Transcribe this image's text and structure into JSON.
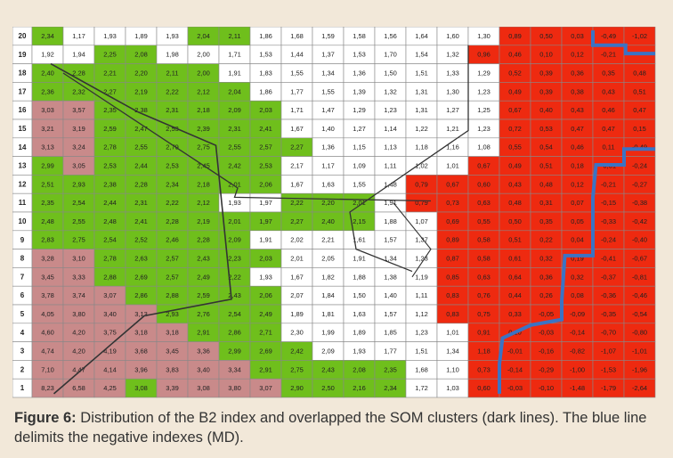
{
  "caption": {
    "label": "Figure 6:",
    "text": " Distribution of the B2 index and overlapped the SOM clusters (dark lines). The blue line delimits the negative indexes (MD)."
  },
  "colors": {
    "green": "#6fbf1c",
    "white": "#ffffff",
    "pink": "#c98a8a",
    "red": "#ee2a10",
    "grid": "#888888",
    "cluster_line": "#333333",
    "blue_line": "#3b73c4"
  },
  "chart_data": {
    "type": "heatmap",
    "title": "",
    "row_labels": [
      "20",
      "19",
      "18",
      "17",
      "16",
      "15",
      "14",
      "13",
      "12",
      "11",
      "10",
      "9",
      "8",
      "7",
      "6",
      "5",
      "4",
      "3",
      "2",
      "1"
    ],
    "color_key": {
      "g": "green",
      "w": "white",
      "p": "pink",
      "r": "red"
    },
    "rows": [
      {
        "values": [
          "2,34",
          "1,17",
          "1,93",
          "1,89",
          "1,93",
          "2,04",
          "2,11",
          "1,86",
          "1,68",
          "1,59",
          "1,58",
          "1,56",
          "1,64",
          "1,60",
          "1,30",
          "0,89",
          "0,50",
          "0,03",
          "-0,49",
          "-1,02"
        ],
        "colors": [
          "g",
          "w",
          "w",
          "w",
          "w",
          "g",
          "g",
          "w",
          "w",
          "w",
          "w",
          "w",
          "w",
          "w",
          "w",
          "r",
          "r",
          "r",
          "r",
          "r"
        ]
      },
      {
        "values": [
          "1,92",
          "1,94",
          "2,25",
          "2,08",
          "1,98",
          "2,00",
          "1,71",
          "1,53",
          "1,44",
          "1,37",
          "1,53",
          "1,70",
          "1,54",
          "1,32",
          "0,96",
          "0,46",
          "0,10",
          "0,12",
          "-0,21",
          ""
        ],
        "colors": [
          "w",
          "w",
          "g",
          "g",
          "w",
          "w",
          "w",
          "w",
          "w",
          "w",
          "w",
          "w",
          "w",
          "w",
          "r",
          "r",
          "r",
          "r",
          "r",
          "r"
        ]
      },
      {
        "values": [
          "2,40",
          "2,28",
          "2,21",
          "2,20",
          "2,11",
          "2,00",
          "1,91",
          "1,83",
          "1,55",
          "1,34",
          "1,36",
          "1,50",
          "1,51",
          "1,33",
          "1,29",
          "0,52",
          "0,39",
          "0,36",
          "0,35",
          "0,48"
        ],
        "colors": [
          "g",
          "g",
          "g",
          "g",
          "g",
          "g",
          "w",
          "w",
          "w",
          "w",
          "w",
          "w",
          "w",
          "w",
          "w",
          "r",
          "r",
          "r",
          "r",
          "r"
        ]
      },
      {
        "values": [
          "2,36",
          "2,32",
          "2,27",
          "2,19",
          "2,22",
          "2,12",
          "2,04",
          "1,86",
          "1,77",
          "1,55",
          "1,39",
          "1,32",
          "1,31",
          "1,30",
          "1,23",
          "0,49",
          "0,39",
          "0,38",
          "0,43",
          "0,51"
        ],
        "colors": [
          "g",
          "g",
          "g",
          "g",
          "g",
          "g",
          "g",
          "w",
          "w",
          "w",
          "w",
          "w",
          "w",
          "w",
          "w",
          "r",
          "r",
          "r",
          "r",
          "r"
        ]
      },
      {
        "values": [
          "3,03",
          "3,57",
          "2,35",
          "2,38",
          "2,31",
          "2,18",
          "2,09",
          "2,03",
          "1,71",
          "1,47",
          "1,29",
          "1,23",
          "1,31",
          "1,27",
          "1,25",
          "0,67",
          "0,40",
          "0,43",
          "0,46",
          "0,47"
        ],
        "colors": [
          "p",
          "p",
          "g",
          "g",
          "g",
          "g",
          "g",
          "g",
          "w",
          "w",
          "w",
          "w",
          "w",
          "w",
          "w",
          "r",
          "r",
          "r",
          "r",
          "r"
        ]
      },
      {
        "values": [
          "3,21",
          "3,19",
          "2,59",
          "2,47",
          "2,53",
          "2,39",
          "2,31",
          "2,41",
          "1,67",
          "1,40",
          "1,27",
          "1,14",
          "1,22",
          "1,21",
          "1,23",
          "0,72",
          "0,53",
          "0,47",
          "0,47",
          "0,15"
        ],
        "colors": [
          "p",
          "p",
          "g",
          "g",
          "g",
          "g",
          "g",
          "g",
          "w",
          "w",
          "w",
          "w",
          "w",
          "w",
          "w",
          "r",
          "r",
          "r",
          "r",
          "r"
        ]
      },
      {
        "values": [
          "3,13",
          "3,24",
          "2,78",
          "2,55",
          "2,79",
          "2,75",
          "2,55",
          "2,57",
          "2,27",
          "1,36",
          "1,15",
          "1,13",
          "1,18",
          "1,16",
          "1,08",
          "0,55",
          "0,54",
          "0,46",
          "0,11",
          "-0,49"
        ],
        "colors": [
          "p",
          "p",
          "g",
          "g",
          "g",
          "g",
          "g",
          "g",
          "g",
          "w",
          "w",
          "w",
          "w",
          "w",
          "w",
          "r",
          "r",
          "r",
          "r",
          "r"
        ]
      },
      {
        "values": [
          "2,99",
          "3,05",
          "2,53",
          "2,44",
          "2,53",
          "2,45",
          "2,42",
          "2,53",
          "2,17",
          "1,17",
          "1,09",
          "1,11",
          "1,02",
          "1,01",
          "0,67",
          "0,49",
          "0,51",
          "0,18",
          "-0,01",
          "-0,24"
        ],
        "colors": [
          "g",
          "p",
          "g",
          "g",
          "g",
          "g",
          "g",
          "g",
          "w",
          "w",
          "w",
          "w",
          "w",
          "w",
          "r",
          "r",
          "r",
          "r",
          "r",
          "r"
        ]
      },
      {
        "values": [
          "2,51",
          "2,93",
          "2,38",
          "2,28",
          "2,34",
          "2,18",
          "2,01",
          "2,06",
          "1,67",
          "1,63",
          "1,55",
          "1,48",
          "0,79",
          "0,67",
          "0,60",
          "0,43",
          "0,48",
          "0,12",
          "-0,21",
          "-0,27"
        ],
        "colors": [
          "g",
          "g",
          "g",
          "g",
          "g",
          "g",
          "g",
          "g",
          "w",
          "w",
          "w",
          "w",
          "r",
          "r",
          "r",
          "r",
          "r",
          "r",
          "r",
          "r"
        ]
      },
      {
        "values": [
          "2,35",
          "2,54",
          "2,44",
          "2,31",
          "2,22",
          "2,12",
          "1,93",
          "1,97",
          "2,22",
          "2,20",
          "2,01",
          "1,91",
          "0,79",
          "0,73",
          "0,63",
          "0,48",
          "0,31",
          "0,07",
          "-0,15",
          "-0,38"
        ],
        "colors": [
          "g",
          "g",
          "g",
          "g",
          "g",
          "g",
          "w",
          "w",
          "g",
          "g",
          "g",
          "w",
          "r",
          "r",
          "r",
          "r",
          "r",
          "r",
          "r",
          "r"
        ]
      },
      {
        "values": [
          "2,48",
          "2,55",
          "2,48",
          "2,41",
          "2,28",
          "2,19",
          "2,01",
          "1,97",
          "2,27",
          "2,40",
          "2,15",
          "1,88",
          "1,07",
          "0,69",
          "0,55",
          "0,50",
          "0,35",
          "0,05",
          "-0,33",
          "-0,42"
        ],
        "colors": [
          "g",
          "g",
          "g",
          "g",
          "g",
          "g",
          "g",
          "g",
          "g",
          "g",
          "g",
          "w",
          "w",
          "r",
          "r",
          "r",
          "r",
          "r",
          "r",
          "r"
        ]
      },
      {
        "values": [
          "2,83",
          "2,75",
          "2,54",
          "2,52",
          "2,46",
          "2,28",
          "2,09",
          "1,91",
          "2,02",
          "2,21",
          "1,61",
          "1,57",
          "1,37",
          "0,89",
          "0,58",
          "0,51",
          "0,22",
          "0,04",
          "-0,24",
          "-0,40"
        ],
        "colors": [
          "g",
          "g",
          "g",
          "g",
          "g",
          "g",
          "g",
          "w",
          "w",
          "w",
          "w",
          "w",
          "w",
          "r",
          "r",
          "r",
          "r",
          "r",
          "r",
          "r"
        ]
      },
      {
        "values": [
          "3,28",
          "3,10",
          "2,78",
          "2,63",
          "2,57",
          "2,43",
          "2,23",
          "2,03",
          "2,01",
          "2,05",
          "1,91",
          "1,34",
          "1,23",
          "0,87",
          "0,58",
          "0,61",
          "0,32",
          "0,19",
          "-0,41",
          "-0,67"
        ],
        "colors": [
          "p",
          "p",
          "g",
          "g",
          "g",
          "g",
          "g",
          "g",
          "w",
          "w",
          "w",
          "w",
          "w",
          "r",
          "r",
          "r",
          "r",
          "r",
          "r",
          "r"
        ]
      },
      {
        "values": [
          "3,45",
          "3,33",
          "2,88",
          "2,69",
          "2,57",
          "2,49",
          "2,22",
          "1,93",
          "1,67",
          "1,82",
          "1,88",
          "1,38",
          "1,19",
          "0,85",
          "0,63",
          "0,64",
          "0,36",
          "0,32",
          "-0,37",
          "-0,81"
        ],
        "colors": [
          "p",
          "p",
          "g",
          "g",
          "g",
          "g",
          "g",
          "w",
          "w",
          "w",
          "w",
          "w",
          "w",
          "r",
          "r",
          "r",
          "r",
          "r",
          "r",
          "r"
        ]
      },
      {
        "values": [
          "3,78",
          "3,74",
          "3,07",
          "2,86",
          "2,88",
          "2,59",
          "2,43",
          "2,06",
          "2,07",
          "1,84",
          "1,50",
          "1,40",
          "1,11",
          "0,83",
          "0,76",
          "0,44",
          "0,26",
          "0,08",
          "-0,36",
          "-0,46"
        ],
        "colors": [
          "p",
          "p",
          "p",
          "g",
          "g",
          "g",
          "g",
          "g",
          "w",
          "w",
          "w",
          "w",
          "w",
          "r",
          "r",
          "r",
          "r",
          "r",
          "r",
          "r"
        ]
      },
      {
        "values": [
          "4,05",
          "3,80",
          "3,40",
          "3,13",
          "2,93",
          "2,76",
          "2,54",
          "2,49",
          "1,89",
          "1,81",
          "1,63",
          "1,57",
          "1,12",
          "0,83",
          "0,75",
          "0,33",
          "-0,05",
          "-0,09",
          "-0,35",
          "-0,54"
        ],
        "colors": [
          "p",
          "p",
          "p",
          "p",
          "g",
          "g",
          "g",
          "g",
          "w",
          "w",
          "w",
          "w",
          "w",
          "r",
          "r",
          "r",
          "r",
          "r",
          "r",
          "r"
        ]
      },
      {
        "values": [
          "4,60",
          "4,20",
          "3,75",
          "3,18",
          "3,18",
          "2,91",
          "2,86",
          "2,71",
          "2,30",
          "1,99",
          "1,89",
          "1,85",
          "1,23",
          "1,01",
          "0,91",
          "0,10",
          "-0,03",
          "-0,14",
          "-0,70",
          "-0,80"
        ],
        "colors": [
          "p",
          "p",
          "p",
          "p",
          "p",
          "g",
          "g",
          "g",
          "w",
          "w",
          "w",
          "w",
          "w",
          "w",
          "r",
          "r",
          "r",
          "r",
          "r",
          "r"
        ]
      },
      {
        "values": [
          "4,74",
          "4,20",
          "4,19",
          "3,68",
          "3,45",
          "3,36",
          "2,99",
          "2,69",
          "2,42",
          "2,09",
          "1,93",
          "1,77",
          "1,51",
          "1,34",
          "1,18",
          "-0,01",
          "-0,16",
          "-0,82",
          "-1,07",
          "-1,01"
        ],
        "colors": [
          "p",
          "p",
          "p",
          "p",
          "p",
          "p",
          "g",
          "g",
          "g",
          "w",
          "w",
          "w",
          "w",
          "w",
          "r",
          "r",
          "r",
          "r",
          "r",
          "r"
        ]
      },
      {
        "values": [
          "7,10",
          "4,47",
          "4,14",
          "3,96",
          "3,83",
          "3,40",
          "3,34",
          "2,91",
          "2,75",
          "2,43",
          "2,08",
          "2,35",
          "1,68",
          "1,10",
          "0,73",
          "-0,14",
          "-0,29",
          "-1,00",
          "-1,53",
          "-1,96"
        ],
        "colors": [
          "p",
          "p",
          "p",
          "p",
          "p",
          "p",
          "p",
          "g",
          "g",
          "g",
          "g",
          "g",
          "w",
          "w",
          "r",
          "r",
          "r",
          "r",
          "r",
          "r"
        ]
      },
      {
        "values": [
          "8,23",
          "6,58",
          "4,25",
          "3,08",
          "3,39",
          "3,08",
          "3,80",
          "3,07",
          "2,90",
          "2,50",
          "2,16",
          "2,34",
          "1,72",
          "1,03",
          "0,60",
          "-0,03",
          "-0,10",
          "-1,48",
          "-1,79",
          "-2,64"
        ],
        "colors": [
          "p",
          "p",
          "p",
          "g",
          "p",
          "p",
          "p",
          "p",
          "g",
          "g",
          "g",
          "g",
          "w",
          "w",
          "r",
          "r",
          "r",
          "r",
          "r",
          "r"
        ]
      }
    ]
  }
}
